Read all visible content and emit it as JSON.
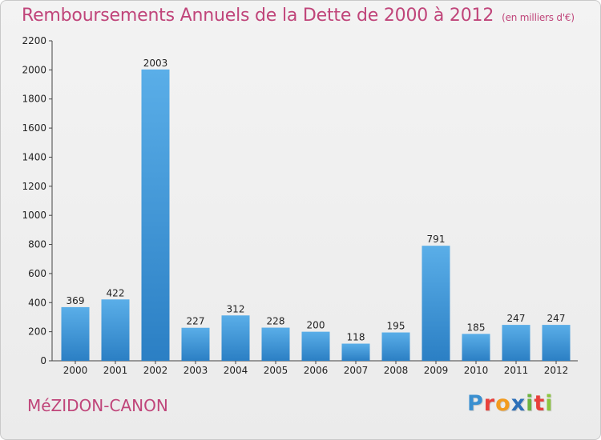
{
  "header": {
    "title": "Remboursements Annuels de la Dette de 2000 à 2012",
    "subtitle": "(en milliers d'€)"
  },
  "footer": {
    "place": "MéZIDON-CANON",
    "logo_text": "Proxiti"
  },
  "colors": {
    "title": "#c0457a",
    "bar_top": "#5aaee8",
    "bar_bottom": "#2b7fc4",
    "logo": [
      "#3a8fd0",
      "#e8403b",
      "#f29b1f",
      "#2c6fb8",
      "#6db33f",
      "#e8403b",
      "#8cc63f"
    ]
  },
  "chart_data": {
    "type": "bar",
    "title": "Remboursements Annuels de la Dette de 2000 à 2012",
    "subtitle": "(en milliers d'€)",
    "xlabel": "",
    "ylabel": "",
    "categories": [
      "2000",
      "2001",
      "2002",
      "2003",
      "2004",
      "2005",
      "2006",
      "2007",
      "2008",
      "2009",
      "2010",
      "2011",
      "2012"
    ],
    "values": [
      369,
      422,
      2003,
      227,
      312,
      228,
      200,
      118,
      195,
      791,
      185,
      247,
      247
    ],
    "ylim": [
      0,
      2200
    ],
    "yticks": [
      0,
      200,
      400,
      600,
      800,
      1000,
      1200,
      1400,
      1600,
      1800,
      2000,
      2200
    ],
    "grid": false,
    "data_labels": true
  }
}
